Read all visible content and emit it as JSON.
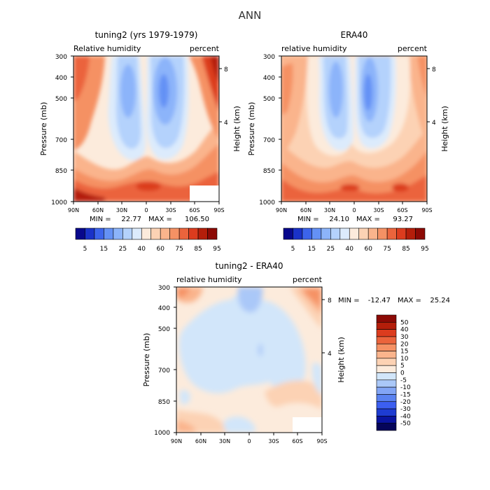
{
  "figure": {
    "title": "ANN"
  },
  "chart_data": [
    {
      "type": "heatmap",
      "title": "tuning2 (yrs 1979-1979)",
      "subtitle_left": "Relative humidity",
      "subtitle_right": "percent",
      "xlabel": "",
      "ylabel": "Pressure (mb)",
      "y2label": "Height (km)",
      "x_ticks": [
        "90N",
        "60N",
        "30N",
        "0",
        "30S",
        "60S",
        "90S"
      ],
      "y_ticks": [
        "300",
        "400",
        "500",
        "700",
        "850",
        "1000"
      ],
      "y2_ticks": [
        "8",
        "4"
      ],
      "stats": {
        "min_label": "MIN =",
        "min": "22.77",
        "max_label": "MAX =",
        "max": "106.50"
      },
      "colorbar": {
        "orientation": "horizontal",
        "labels": [
          "5",
          "15",
          "25",
          "40",
          "60",
          "75",
          "85",
          "95"
        ],
        "colors": [
          "#08088c",
          "#1a32c8",
          "#3c64eb",
          "#6491f5",
          "#8cb4fa",
          "#b4d2fc",
          "#dcebfc",
          "#fcebdc",
          "#fcd2b4",
          "#fab48c",
          "#f59164",
          "#eb643c",
          "#dc3c1e",
          "#b41e0a",
          "#8c0a05"
        ]
      }
    },
    {
      "type": "heatmap",
      "title": "ERA40",
      "subtitle_left": "relative humidity",
      "subtitle_right": "percent",
      "xlabel": "",
      "ylabel": "Pressure (mb)",
      "y2label": "Height (km)",
      "x_ticks": [
        "90N",
        "60N",
        "30N",
        "0",
        "30S",
        "60S",
        "90S"
      ],
      "y_ticks": [
        "300",
        "400",
        "500",
        "700",
        "850",
        "1000"
      ],
      "y2_ticks": [
        "8",
        "4"
      ],
      "stats": {
        "min_label": "MIN =",
        "min": "24.10",
        "max_label": "MAX =",
        "max": "93.27"
      },
      "colorbar": {
        "orientation": "horizontal",
        "labels": [
          "5",
          "15",
          "25",
          "40",
          "60",
          "75",
          "85",
          "95"
        ],
        "colors": [
          "#08088c",
          "#1a32c8",
          "#3c64eb",
          "#6491f5",
          "#8cb4fa",
          "#b4d2fc",
          "#dcebfc",
          "#fcebdc",
          "#fcd2b4",
          "#fab48c",
          "#f59164",
          "#eb643c",
          "#dc3c1e",
          "#b41e0a",
          "#8c0a05"
        ]
      }
    },
    {
      "type": "heatmap",
      "title": "tuning2 - ERA40",
      "subtitle_left": "relative humidity",
      "subtitle_right": "percent",
      "xlabel": "",
      "ylabel": "Pressure (mb)",
      "y2label": "Height (km)",
      "x_ticks": [
        "90N",
        "60N",
        "30N",
        "0",
        "30S",
        "60S",
        "90S"
      ],
      "y_ticks": [
        "300",
        "400",
        "500",
        "700",
        "850",
        "1000"
      ],
      "y2_ticks": [
        "8",
        "4"
      ],
      "stats": {
        "min_label": "MIN =",
        "min": "-12.47",
        "max_label": "MAX =",
        "max": "25.24"
      },
      "colorbar": {
        "orientation": "vertical",
        "labels": [
          "50",
          "40",
          "30",
          "20",
          "15",
          "10",
          "5",
          "0",
          "-5",
          "-10",
          "-15",
          "-20",
          "-30",
          "-40",
          "-50"
        ],
        "colors": [
          "#8c0a05",
          "#b41e0a",
          "#dc3c1e",
          "#eb643c",
          "#f59164",
          "#fab48c",
          "#fcd2b4",
          "#fcebdc",
          "#d2e6fa",
          "#aac8f8",
          "#82a5f5",
          "#5a82f0",
          "#3c5ff0",
          "#1e3cd2",
          "#0a14a0",
          "#05055a"
        ]
      }
    }
  ]
}
